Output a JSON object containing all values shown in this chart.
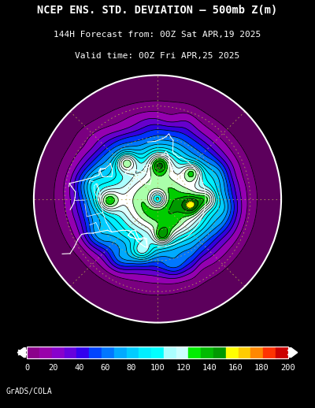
{
  "title_line1": "NCEP ENS. STD. DEVIATION – 500mb Z(m)",
  "title_line2": "144H Forecast from: 00Z Sat APR,19 2025",
  "title_line3": "Valid time: 00Z Fri APR,25 2025",
  "colorbar_ticks": [
    0,
    20,
    40,
    60,
    80,
    100,
    120,
    140,
    160,
    180,
    200
  ],
  "fill_colors": [
    "#5c005c",
    "#7a0080",
    "#9400b0",
    "#6600cc",
    "#3300dd",
    "#0033ff",
    "#0077ff",
    "#00aaff",
    "#00ccff",
    "#00eeff",
    "#00ffff",
    "#aaffff",
    "#ddfffe",
    "#ffffff",
    "#aaffaa",
    "#00cc00",
    "#009900",
    "#006600",
    "#ffff00",
    "#ff9900",
    "#ff3300"
  ],
  "contour_levels": [
    0,
    10,
    20,
    30,
    40,
    50,
    60,
    70,
    80,
    90,
    100,
    110,
    120,
    130,
    140,
    150,
    160,
    170,
    180,
    190,
    200
  ],
  "background_color": "#000000",
  "credit_text": "GrADS/COLA",
  "figsize": [
    4.0,
    5.18
  ],
  "dpi": 100,
  "grid_color": "#bbaa55",
  "cb_colors": [
    "#8b008b",
    "#9900aa",
    "#8800cc",
    "#6600dd",
    "#3300ee",
    "#0044ff",
    "#0077ff",
    "#00aaff",
    "#00ccff",
    "#00eeff",
    "#00ffff",
    "#aaffff",
    "#ccffff",
    "#00ee00",
    "#00bb00",
    "#009900",
    "#ffff00",
    "#ffcc00",
    "#ff8800",
    "#ff3300",
    "#cc0000"
  ]
}
